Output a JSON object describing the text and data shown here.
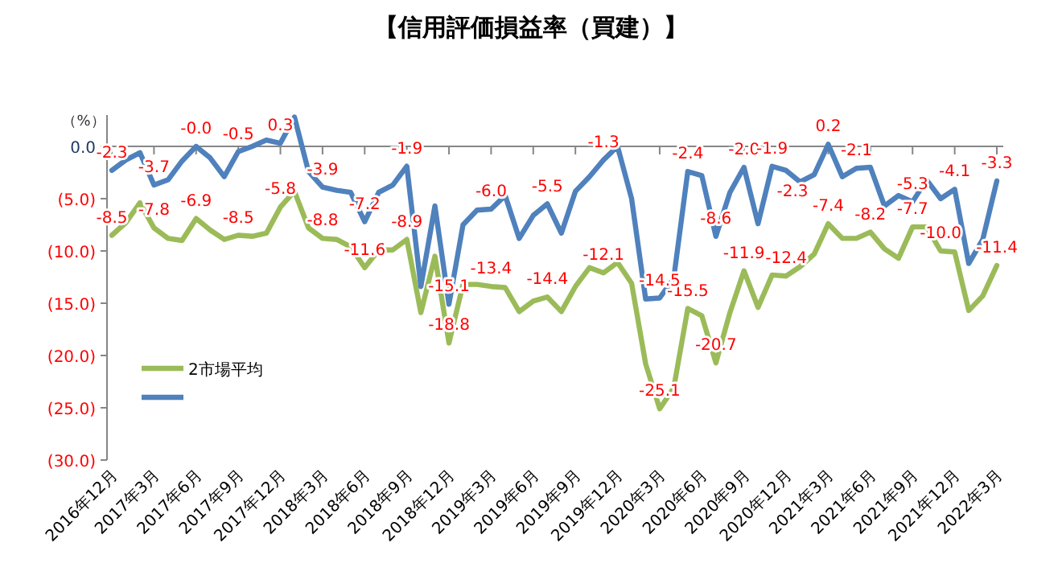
{
  "chart_data": {
    "type": "line",
    "title": "【信用評価損益率（買建）】",
    "ylabel": "（%）",
    "categories": [
      "2016年12月",
      null,
      null,
      "2017年3月",
      null,
      null,
      "2017年6月",
      null,
      null,
      "2017年9月",
      null,
      null,
      "2017年12月",
      null,
      null,
      "2018年3月",
      null,
      null,
      "2018年6月",
      null,
      null,
      "2018年9月",
      null,
      null,
      "2018年12月",
      null,
      null,
      "2019年3月",
      null,
      null,
      "2019年6月",
      null,
      null,
      "2019年9月",
      null,
      null,
      "2019年12月",
      null,
      null,
      "2020年3月",
      null,
      null,
      "2020年6月",
      null,
      null,
      "2020年9月",
      null,
      null,
      "2020年12月",
      null,
      null,
      "2021年3月",
      null,
      null,
      "2021年6月",
      null,
      null,
      "2021年9月",
      null,
      null,
      "2021年12月",
      null,
      null,
      "2022年3月"
    ],
    "series": [
      {
        "name": "2市場平均",
        "color": "#9bbb59",
        "values": [
          -8.5,
          -7.3,
          -5.4,
          -7.8,
          -8.8,
          -9.0,
          -6.9,
          -8.0,
          -8.9,
          -8.5,
          -8.6,
          -8.3,
          -5.8,
          -4.3,
          -7.8,
          -8.8,
          -8.9,
          -9.6,
          -11.6,
          -9.9,
          -9.9,
          -8.9,
          -15.9,
          -10.5,
          -18.8,
          -13.2,
          -13.2,
          -13.4,
          -13.5,
          -15.8,
          -14.8,
          -14.4,
          -15.8,
          -13.4,
          -11.6,
          -12.1,
          -11.1,
          -13.1,
          -20.8,
          -25.1,
          -23.1,
          -15.5,
          -16.2,
          -20.7,
          -15.9,
          -11.9,
          -15.4,
          -12.3,
          -12.4,
          -11.5,
          -10.3,
          -7.4,
          -8.8,
          -8.8,
          -8.2,
          -9.8,
          -10.7,
          -7.7,
          -7.7,
          -10.0,
          -10.1,
          -15.7,
          -14.3,
          -11.4
        ],
        "value_labels": [
          "-8.5",
          null,
          null,
          "-7.8",
          null,
          null,
          "-6.9",
          null,
          null,
          "-8.5",
          null,
          null,
          "-5.8",
          null,
          null,
          "-8.8",
          null,
          null,
          "-11.6",
          null,
          null,
          "-8.9",
          null,
          null,
          "-18.8",
          null,
          null,
          "-13.4",
          null,
          null,
          null,
          "-14.4",
          null,
          null,
          null,
          "-12.1",
          null,
          null,
          null,
          "-25.1",
          null,
          "-15.5",
          null,
          "-20.7",
          null,
          "-11.9",
          null,
          null,
          "-12.4",
          null,
          null,
          "-7.4",
          null,
          null,
          "-8.2",
          null,
          null,
          "-7.7",
          null,
          "-10.0",
          null,
          null,
          null,
          "-11.4"
        ]
      },
      {
        "color": "#4f81bd",
        "values": [
          -2.3,
          -1.3,
          -0.6,
          -3.7,
          -3.2,
          -1.4,
          -0.0,
          -1.1,
          -2.9,
          -0.5,
          0.0,
          0.6,
          0.3,
          2.8,
          -2.4,
          -3.9,
          -4.2,
          -4.4,
          -7.2,
          -4.4,
          -3.7,
          -1.9,
          -13.4,
          -5.7,
          -15.1,
          -7.5,
          -6.1,
          -6.0,
          -4.7,
          -8.8,
          -6.6,
          -5.5,
          -8.3,
          -4.3,
          -2.9,
          -1.3,
          0.0,
          -5.0,
          -14.6,
          -14.5,
          -12.6,
          -2.4,
          -2.8,
          -8.6,
          -4.4,
          -2.0,
          -7.4,
          -1.9,
          -2.3,
          -3.4,
          -2.7,
          0.2,
          -2.9,
          -2.1,
          -2.0,
          -5.7,
          -4.7,
          -5.3,
          -3.2,
          -5.0,
          -4.1,
          -11.2,
          -8.9,
          -3.3
        ],
        "value_labels": [
          "-2.3",
          null,
          null,
          "-3.7",
          null,
          null,
          "-0.0",
          null,
          null,
          "-0.5",
          null,
          null,
          "0.3",
          null,
          null,
          "-3.9",
          null,
          null,
          "-7.2",
          null,
          null,
          "-1.9",
          null,
          null,
          "-15.1",
          null,
          null,
          "-6.0",
          null,
          null,
          null,
          "-5.5",
          null,
          null,
          null,
          "-1.3",
          null,
          null,
          null,
          "-14.5",
          null,
          "-2.4",
          null,
          "-8.6",
          null,
          "-2.0",
          null,
          "-1.9",
          "-2.3",
          null,
          null,
          "0.2",
          null,
          "-2.1",
          null,
          null,
          null,
          "-5.3",
          null,
          null,
          "-4.1",
          null,
          null,
          "-3.3"
        ]
      }
    ],
    "ylim": [
      -30,
      3
    ],
    "yticks": [
      {
        "value": 0,
        "label": "0.0"
      },
      {
        "value": -5,
        "label": "(5.0)"
      },
      {
        "value": -10,
        "label": "(10.0)"
      },
      {
        "value": -15,
        "label": "(15.0)"
      },
      {
        "value": -20,
        "label": "(20.0)"
      },
      {
        "value": -25,
        "label": "(25.0)"
      },
      {
        "value": -30,
        "label": "(30.0)"
      }
    ],
    "legend": "bottom left",
    "marker": "none",
    "line_style": "solid"
  }
}
